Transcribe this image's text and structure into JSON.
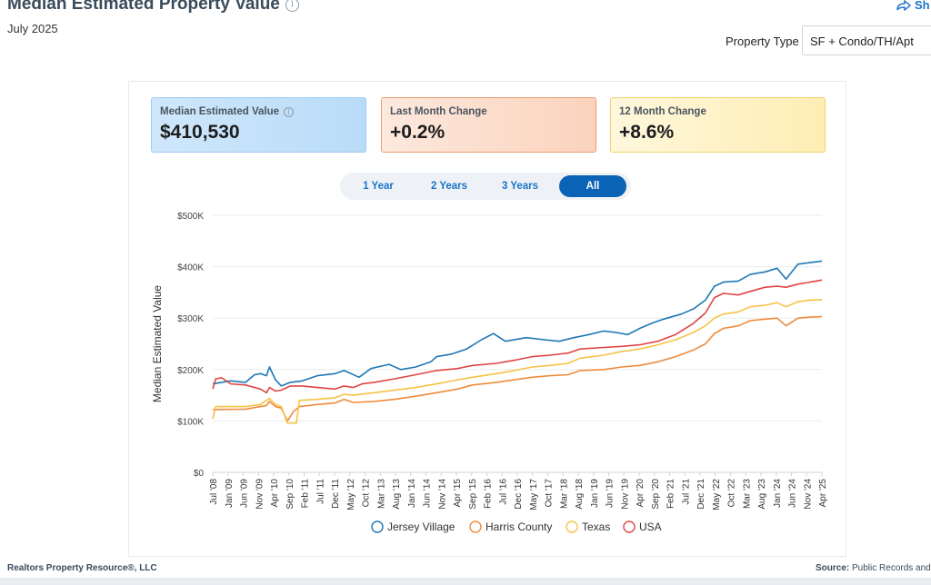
{
  "header": {
    "title": "Median Estimated Property Value",
    "subtitle": "July 2025",
    "share_label": "Sh",
    "property_type_label": "Property Type",
    "property_type_value": "SF + Condo/TH/Apt"
  },
  "stats": [
    {
      "label": "Median Estimated Value",
      "value": "$410,530"
    },
    {
      "label": "Last Month Change",
      "value": "+0.2%"
    },
    {
      "label": "12 Month Change",
      "value": "+8.6%"
    }
  ],
  "range_tabs": [
    {
      "label": "1 Year",
      "active": false
    },
    {
      "label": "2 Years",
      "active": false
    },
    {
      "label": "3 Years",
      "active": false
    },
    {
      "label": "All",
      "active": true
    }
  ],
  "footer": {
    "left": "Realtors Property Resource®, LLC",
    "source_label": "Source:",
    "source_text": "Public Records and"
  },
  "chart_data": {
    "type": "line",
    "ylabel": "Median Estimated Value",
    "ylim": [
      0,
      500000
    ],
    "y_ticks": [
      0,
      100000,
      200000,
      300000,
      400000,
      500000
    ],
    "y_tick_labels": [
      "$0",
      "$100K",
      "$200K",
      "$300K",
      "$400K",
      "$500K"
    ],
    "x_tick_labels": [
      "Jul '08",
      "Jan '09",
      "Jun '09",
      "Nov '09",
      "Apr '10",
      "Sep '10",
      "Feb '11",
      "Jul '11",
      "Dec '11",
      "May '12",
      "Oct '12",
      "Mar '13",
      "Aug '13",
      "Jan '14",
      "Jun '14",
      "Nov '14",
      "Apr '15",
      "Sep '15",
      "Feb '16",
      "Jul '16",
      "Dec '16",
      "May '17",
      "Oct '17",
      "Mar '18",
      "Aug '18",
      "Jan '19",
      "Jun '19",
      "Nov '19",
      "Apr '20",
      "Sep '20",
      "Feb '21",
      "Jul '21",
      "Dec '21",
      "May '22",
      "Oct '22",
      "Mar '23",
      "Aug '23",
      "Jan '24",
      "Jun '24",
      "Nov '24",
      "Apr '25"
    ],
    "x_range": [
      "2008-07",
      "2025-07"
    ],
    "grid": true,
    "legend_position": "bottom",
    "series": [
      {
        "name": "Jersey Village",
        "color": "#1f77b4",
        "points": [
          [
            "2008-07",
            172000
          ],
          [
            "2009-01",
            178000
          ],
          [
            "2009-06",
            175000
          ],
          [
            "2009-09",
            190000
          ],
          [
            "2009-11",
            192000
          ],
          [
            "2010-01",
            188000
          ],
          [
            "2010-02",
            205000
          ],
          [
            "2010-04",
            180000
          ],
          [
            "2010-06",
            168000
          ],
          [
            "2010-09",
            175000
          ],
          [
            "2011-01",
            178000
          ],
          [
            "2011-06",
            188000
          ],
          [
            "2011-12",
            192000
          ],
          [
            "2012-03",
            198000
          ],
          [
            "2012-08",
            185000
          ],
          [
            "2012-12",
            202000
          ],
          [
            "2013-06",
            210000
          ],
          [
            "2013-10",
            200000
          ],
          [
            "2014-03",
            205000
          ],
          [
            "2014-08",
            215000
          ],
          [
            "2014-10",
            225000
          ],
          [
            "2015-03",
            230000
          ],
          [
            "2015-08",
            240000
          ],
          [
            "2016-01",
            258000
          ],
          [
            "2016-05",
            270000
          ],
          [
            "2016-09",
            255000
          ],
          [
            "2017-04",
            262000
          ],
          [
            "2017-10",
            258000
          ],
          [
            "2018-03",
            255000
          ],
          [
            "2018-08",
            262000
          ],
          [
            "2019-01",
            268000
          ],
          [
            "2019-06",
            275000
          ],
          [
            "2019-10",
            272000
          ],
          [
            "2020-02",
            268000
          ],
          [
            "2020-06",
            280000
          ],
          [
            "2020-10",
            290000
          ],
          [
            "2021-02",
            298000
          ],
          [
            "2021-08",
            308000
          ],
          [
            "2021-12",
            318000
          ],
          [
            "2022-04",
            335000
          ],
          [
            "2022-07",
            362000
          ],
          [
            "2022-10",
            370000
          ],
          [
            "2023-03",
            372000
          ],
          [
            "2023-07",
            385000
          ],
          [
            "2023-12",
            390000
          ],
          [
            "2024-04",
            397000
          ],
          [
            "2024-07",
            376000
          ],
          [
            "2024-11",
            405000
          ],
          [
            "2025-03",
            408000
          ],
          [
            "2025-07",
            411000
          ]
        ]
      },
      {
        "name": "Harris County",
        "color": "#ef8b3c",
        "points": [
          [
            "2008-07",
            122000
          ],
          [
            "2009-06",
            123000
          ],
          [
            "2009-11",
            128000
          ],
          [
            "2010-01",
            130000
          ],
          [
            "2010-02",
            138000
          ],
          [
            "2010-04",
            128000
          ],
          [
            "2010-06",
            125000
          ],
          [
            "2010-08",
            100000
          ],
          [
            "2010-10",
            118000
          ],
          [
            "2010-12",
            128000
          ],
          [
            "2011-06",
            132000
          ],
          [
            "2011-12",
            135000
          ],
          [
            "2012-03",
            142000
          ],
          [
            "2012-06",
            136000
          ],
          [
            "2013-01",
            138000
          ],
          [
            "2013-08",
            142000
          ],
          [
            "2014-03",
            148000
          ],
          [
            "2014-10",
            155000
          ],
          [
            "2015-05",
            162000
          ],
          [
            "2015-10",
            170000
          ],
          [
            "2016-06",
            175000
          ],
          [
            "2016-12",
            180000
          ],
          [
            "2017-06",
            185000
          ],
          [
            "2017-12",
            188000
          ],
          [
            "2018-06",
            190000
          ],
          [
            "2018-10",
            198000
          ],
          [
            "2019-06",
            200000
          ],
          [
            "2019-12",
            205000
          ],
          [
            "2020-06",
            208000
          ],
          [
            "2020-12",
            215000
          ],
          [
            "2021-06",
            225000
          ],
          [
            "2021-12",
            238000
          ],
          [
            "2022-04",
            250000
          ],
          [
            "2022-07",
            270000
          ],
          [
            "2022-10",
            280000
          ],
          [
            "2023-03",
            285000
          ],
          [
            "2023-07",
            295000
          ],
          [
            "2023-12",
            298000
          ],
          [
            "2024-04",
            300000
          ],
          [
            "2024-07",
            285000
          ],
          [
            "2024-11",
            300000
          ],
          [
            "2025-03",
            302000
          ],
          [
            "2025-07",
            303000
          ]
        ]
      },
      {
        "name": "Texas",
        "color": "#f6c244",
        "points": [
          [
            "2008-07",
            104000
          ],
          [
            "2008-08",
            128000
          ],
          [
            "2009-06",
            128000
          ],
          [
            "2009-11",
            132000
          ],
          [
            "2010-01",
            140000
          ],
          [
            "2010-02",
            144000
          ],
          [
            "2010-04",
            132000
          ],
          [
            "2010-06",
            128000
          ],
          [
            "2010-08",
            96000
          ],
          [
            "2010-11",
            96000
          ],
          [
            "2010-12",
            140000
          ],
          [
            "2011-06",
            142000
          ],
          [
            "2011-12",
            145000
          ],
          [
            "2012-03",
            152000
          ],
          [
            "2012-06",
            150000
          ],
          [
            "2013-01",
            155000
          ],
          [
            "2013-08",
            160000
          ],
          [
            "2014-03",
            165000
          ],
          [
            "2014-10",
            172000
          ],
          [
            "2015-05",
            180000
          ],
          [
            "2015-10",
            185000
          ],
          [
            "2016-06",
            192000
          ],
          [
            "2016-12",
            198000
          ],
          [
            "2017-06",
            205000
          ],
          [
            "2017-12",
            208000
          ],
          [
            "2018-06",
            212000
          ],
          [
            "2018-10",
            222000
          ],
          [
            "2019-06",
            228000
          ],
          [
            "2019-12",
            235000
          ],
          [
            "2020-06",
            240000
          ],
          [
            "2020-12",
            248000
          ],
          [
            "2021-06",
            258000
          ],
          [
            "2021-12",
            272000
          ],
          [
            "2022-04",
            285000
          ],
          [
            "2022-07",
            300000
          ],
          [
            "2022-10",
            308000
          ],
          [
            "2023-03",
            312000
          ],
          [
            "2023-07",
            322000
          ],
          [
            "2023-12",
            325000
          ],
          [
            "2024-04",
            330000
          ],
          [
            "2024-07",
            322000
          ],
          [
            "2024-11",
            332000
          ],
          [
            "2025-03",
            335000
          ],
          [
            "2025-07",
            336000
          ]
        ]
      },
      {
        "name": "USA",
        "color": "#e04545",
        "points": [
          [
            "2008-07",
            162000
          ],
          [
            "2008-08",
            182000
          ],
          [
            "2008-10",
            184000
          ],
          [
            "2009-01",
            172000
          ],
          [
            "2009-06",
            170000
          ],
          [
            "2009-11",
            162000
          ],
          [
            "2010-01",
            155000
          ],
          [
            "2010-02",
            165000
          ],
          [
            "2010-04",
            158000
          ],
          [
            "2010-06",
            160000
          ],
          [
            "2010-09",
            168000
          ],
          [
            "2011-01",
            168000
          ],
          [
            "2011-06",
            165000
          ],
          [
            "2011-12",
            162000
          ],
          [
            "2012-03",
            168000
          ],
          [
            "2012-06",
            165000
          ],
          [
            "2012-09",
            172000
          ],
          [
            "2013-01",
            175000
          ],
          [
            "2013-08",
            182000
          ],
          [
            "2014-03",
            190000
          ],
          [
            "2014-10",
            198000
          ],
          [
            "2015-05",
            202000
          ],
          [
            "2015-10",
            208000
          ],
          [
            "2016-06",
            212000
          ],
          [
            "2016-12",
            218000
          ],
          [
            "2017-06",
            225000
          ],
          [
            "2017-12",
            228000
          ],
          [
            "2018-06",
            232000
          ],
          [
            "2018-10",
            240000
          ],
          [
            "2019-06",
            243000
          ],
          [
            "2019-12",
            245000
          ],
          [
            "2020-06",
            248000
          ],
          [
            "2020-12",
            255000
          ],
          [
            "2021-06",
            268000
          ],
          [
            "2021-12",
            290000
          ],
          [
            "2022-04",
            310000
          ],
          [
            "2022-07",
            340000
          ],
          [
            "2022-10",
            348000
          ],
          [
            "2023-03",
            345000
          ],
          [
            "2023-07",
            352000
          ],
          [
            "2023-12",
            360000
          ],
          [
            "2024-04",
            362000
          ],
          [
            "2024-07",
            360000
          ],
          [
            "2024-11",
            366000
          ],
          [
            "2025-03",
            370000
          ],
          [
            "2025-07",
            374000
          ]
        ]
      }
    ]
  }
}
